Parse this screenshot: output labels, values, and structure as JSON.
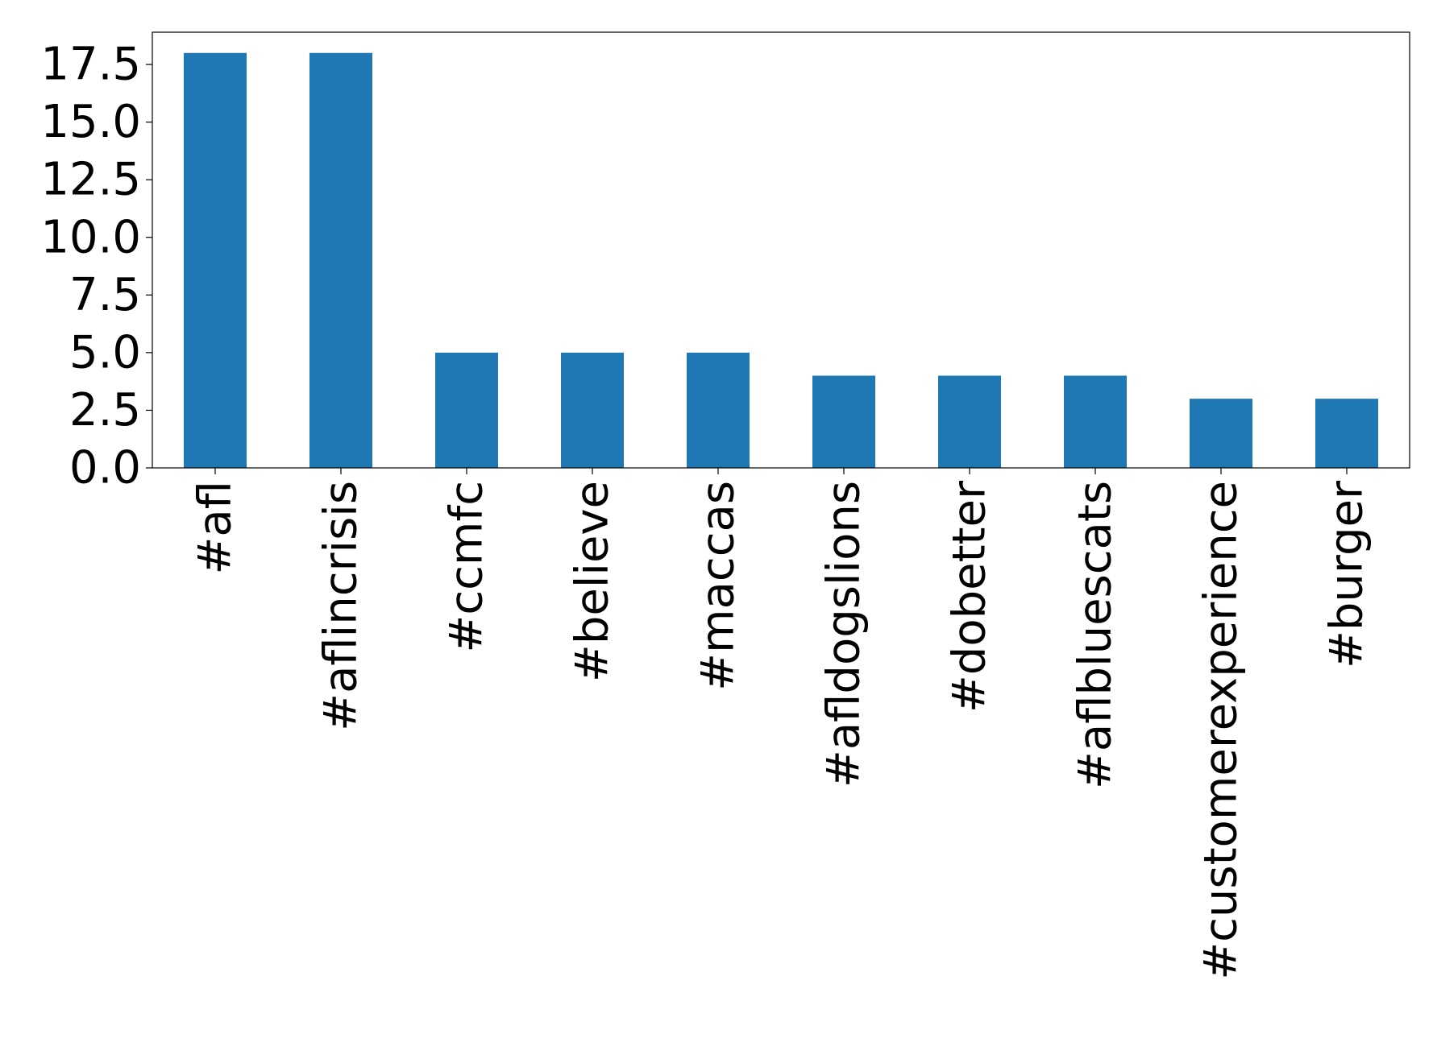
{
  "chart_data": {
    "type": "bar",
    "categories": [
      "#afl",
      "#aflincrisis",
      "#ccmfc",
      "#believe",
      "#maccas",
      "#afldogslions",
      "#dobetter",
      "#aflbluescats",
      "#customerexperience",
      "#burger"
    ],
    "values": [
      18,
      18,
      5,
      5,
      5,
      4,
      4,
      4,
      3,
      3
    ],
    "color": "#1f77b4",
    "ylim": [
      0,
      18.9
    ],
    "yticks": [
      {
        "value": 0,
        "label": "0.0"
      },
      2.5,
      {
        "value": 5,
        "label": "5.0"
      },
      7.5,
      {
        "value": 10,
        "label": "10.0"
      },
      12.5,
      {
        "value": 15,
        "label": "15.0"
      },
      17.5
    ],
    "grid": false
  }
}
